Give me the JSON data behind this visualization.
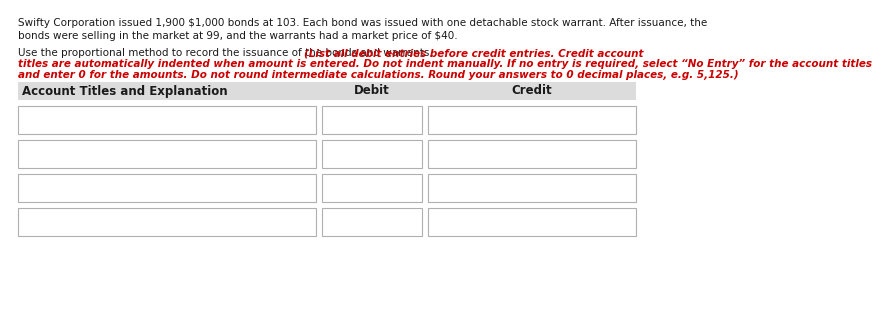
{
  "bg_color": "#ffffff",
  "header_bg": "#dcdcdc",
  "text_color_black": "#1a1a1a",
  "text_color_red": "#cc0000",
  "para1_line1": "Swifty Corporation issued 1,900 $1,000 bonds at 103. Each bond was issued with one detachable stock warrant. After issuance, the",
  "para1_line2": "bonds were selling in the market at 99, and the warrants had a market price of $40.",
  "para2_black": "Use the proportional method to record the issuance of the bonds and warrants. ",
  "para2_red_line1": "(List all debit entries before credit entries. Credit account",
  "para2_red_line2": "titles are automatically indented when amount is entered. Do not indent manually. If no entry is required, select “No Entry” for the account titles",
  "para2_red_line3": "and enter 0 for the amounts. Do not round intermediate calculations. Round your answers to 0 decimal places, e.g. 5,125.)",
  "col1_header": "Account Titles and Explanation",
  "col2_header": "Debit",
  "col3_header": "Credit",
  "num_rows": 4,
  "font_size_text": 7.5,
  "font_size_header": 8.5,
  "box_line_color": "#b0b0b0",
  "box_fill_color": "#ffffff",
  "header_line_color": "#cccccc"
}
